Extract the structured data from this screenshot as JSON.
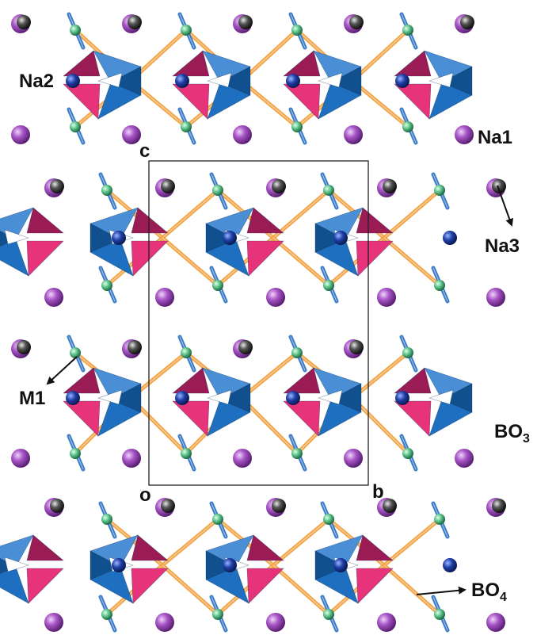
{
  "figure": {
    "labels": {
      "na1": "Na1",
      "na2": "Na2",
      "na3": "Na3",
      "m1": "M1",
      "bo3_main": "BO",
      "bo3_sub": "3",
      "bo4_main": "BO",
      "bo4_sub": "4"
    },
    "cell_axes": {
      "c": "c",
      "o": "o",
      "b": "b"
    },
    "colors": {
      "triangle_blue": "#1e6fbf",
      "triangle_blue_light": "#4a8fd6",
      "triangle_blue_dark": "#10508f",
      "tetra_pink": "#e6337a",
      "tetra_pink_dark": "#9b1c55",
      "na_sphere": "#a855c7",
      "inner_sphere": "#1f3fa6",
      "dark_sphere": "#3a3a3a",
      "m_sphere": "#5cc28a",
      "bond_orange": "#f3a64a",
      "bond_blue": "#3d7cc9"
    }
  }
}
